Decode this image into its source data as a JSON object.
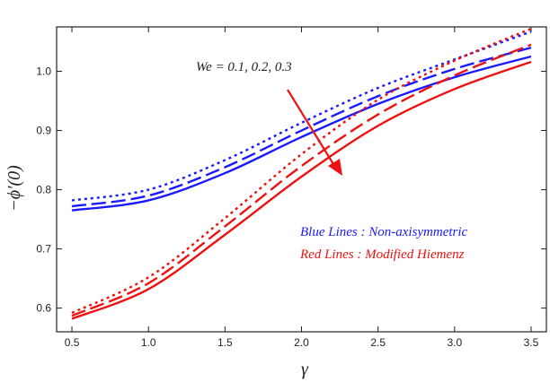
{
  "chart_data": {
    "type": "line",
    "xlabel": "γ",
    "ylabel": "−ϕ′(0)",
    "xlim": [
      0.4,
      3.6
    ],
    "ylim": [
      0.56,
      1.075
    ],
    "xticks": [
      "0.5",
      "1.0",
      "1.5",
      "2.0",
      "2.5",
      "3.0",
      "3.5"
    ],
    "yticks": [
      "0.6",
      "0.7",
      "0.8",
      "0.9",
      "1.0"
    ],
    "grid": false,
    "annotations": {
      "we": "We = 0.1, 0.2, 0.3",
      "blue": "Blue Lines : Non-axisymmetric",
      "red": "Red Lines : Modified Hiemenz"
    },
    "x": [
      0.5,
      1.0,
      1.5,
      2.0,
      2.5,
      3.0,
      3.5
    ],
    "series": [
      {
        "group": "blue",
        "style": "solid",
        "color": "#1a1aff",
        "values": [
          0.765,
          0.782,
          0.828,
          0.889,
          0.945,
          0.99,
          1.025
        ]
      },
      {
        "group": "blue",
        "style": "dashed",
        "color": "#1a1aff",
        "values": [
          0.772,
          0.79,
          0.838,
          0.9,
          0.958,
          1.004,
          1.04
        ]
      },
      {
        "group": "blue",
        "style": "dotted",
        "color": "#1a1aff",
        "values": [
          0.782,
          0.8,
          0.85,
          0.913,
          0.972,
          1.02,
          1.067
        ]
      },
      {
        "group": "red",
        "style": "solid",
        "color": "#ee1111",
        "values": [
          0.582,
          0.632,
          0.724,
          0.822,
          0.908,
          0.97,
          1.016
        ]
      },
      {
        "group": "red",
        "style": "dashed",
        "color": "#ee1111",
        "values": [
          0.587,
          0.642,
          0.738,
          0.84,
          0.927,
          0.993,
          1.045
        ]
      },
      {
        "group": "red",
        "style": "dotted",
        "color": "#ee1111",
        "values": [
          0.592,
          0.652,
          0.752,
          0.86,
          0.952,
          1.018,
          1.072
        ]
      }
    ],
    "colors": {
      "axis": "#222222",
      "arrow": "#ee1111",
      "blue_text": "#1a1aff",
      "red_text": "#ee1111"
    }
  }
}
